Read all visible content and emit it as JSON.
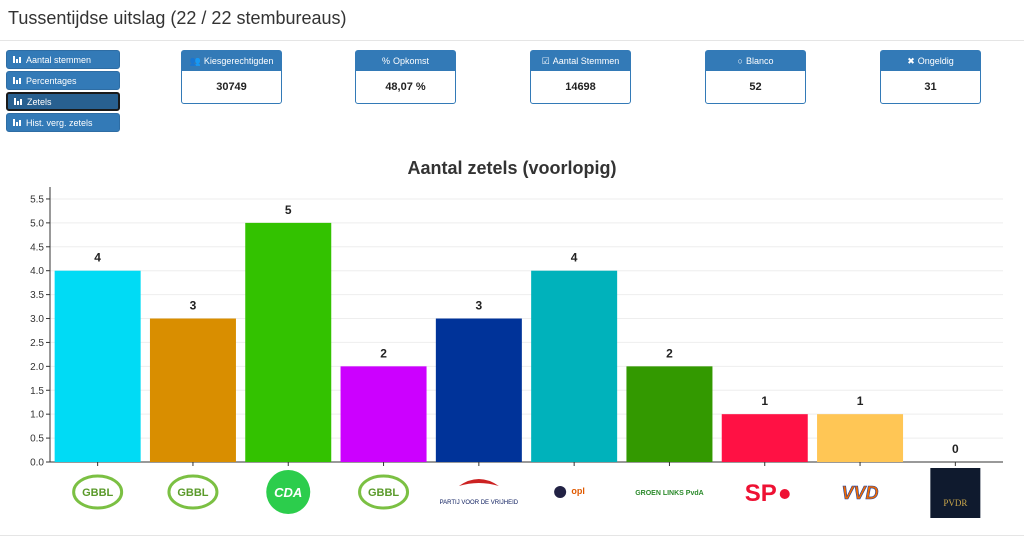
{
  "page": {
    "title": "Tussentijdse uitslag (22 / 22 stembureaus)"
  },
  "side_buttons": [
    {
      "label": "Aantal stemmen",
      "active": false
    },
    {
      "label": "Percentages",
      "active": false
    },
    {
      "label": "Zetels",
      "active": true
    },
    {
      "label": "Hist. verg. zetels",
      "active": false
    }
  ],
  "stats": [
    {
      "label": "Kiesgerechtigden",
      "value": "30749",
      "icon": "users-icon",
      "symbol": "👥"
    },
    {
      "label": "Opkomst",
      "value": "48,07 %",
      "icon": "percent-icon",
      "symbol": "%"
    },
    {
      "label": "Aantal Stemmen",
      "value": "14698",
      "icon": "checkbox-icon",
      "symbol": "☑"
    },
    {
      "label": "Blanco",
      "value": "52",
      "icon": "circle-icon",
      "symbol": "○"
    },
    {
      "label": "Ongeldig",
      "value": "31",
      "icon": "x-icon",
      "symbol": "✖"
    }
  ],
  "chart_data": {
    "type": "bar",
    "title": "Aantal zetels (voorlopig)",
    "categories": [
      "GBBL",
      "GBBL",
      "CDA",
      "GBBL",
      "Partij voor de Vrijheid",
      "OPL",
      "GroenLinks PvdA",
      "SP",
      "VVD",
      "PVDR"
    ],
    "values": [
      4,
      3,
      5,
      2,
      3,
      4,
      2,
      1,
      1,
      0
    ],
    "colors": [
      "#00dbf5",
      "#d98e00",
      "#33c200",
      "#cc00ff",
      "#003399",
      "#00b2bb",
      "#339900",
      "#ff1144",
      "#ffc655",
      "#222222"
    ],
    "ylim": [
      0,
      5.75
    ],
    "yticks": [
      "0.0",
      "0.5",
      "1.0",
      "1.5",
      "2.0",
      "2.5",
      "3.0",
      "3.5",
      "4.0",
      "4.5",
      "5.0",
      "5.5"
    ],
    "grid": true,
    "logo_texts": [
      "GBBL",
      "GBBL",
      "CDA",
      "GBBL",
      "PARTIJ VOOR DE VRIJHEID",
      "opl",
      "GROEN LINKS PvdA",
      "SP",
      "VVD",
      "PVDR"
    ]
  }
}
